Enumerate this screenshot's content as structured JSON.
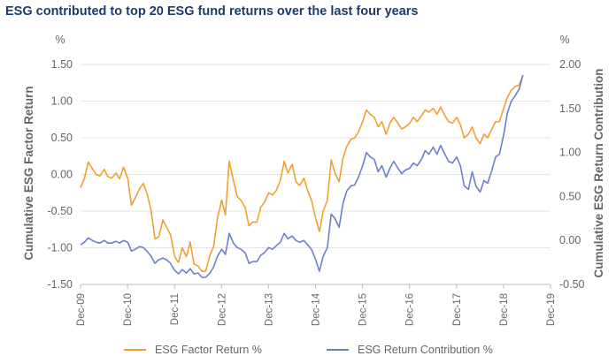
{
  "chart_data": {
    "type": "line",
    "title": "ESG contributed to top 20 ESG fund returns over the last four years",
    "y_left": {
      "label": "Cumulative ESG Factor Return",
      "unit": "%",
      "ticks": [
        "1.50",
        "1.00",
        "0.50",
        "0.00",
        "-0.50",
        "-1.00",
        "-1.50"
      ],
      "range": [
        -1.5,
        1.5
      ]
    },
    "y_right": {
      "label": "Cumulative ESG Return Contribution",
      "unit": "%",
      "ticks": [
        "2.00",
        "1.50",
        "1.00",
        "0.50",
        "0.00",
        "-0.50"
      ],
      "range": [
        -0.5,
        2.0
      ]
    },
    "x_ticks": [
      "Dec-09",
      "Dec-10",
      "Dec-11",
      "Dec-12",
      "Dec-13",
      "Dec-14",
      "Dec-15",
      "Dec-16",
      "Dec-17",
      "Dec-18",
      "Dec-19"
    ],
    "x_range": [
      2009.917,
      2019.917
    ],
    "grid": true,
    "legend_position": "bottom",
    "series": [
      {
        "name": "ESG Factor Return %",
        "color": "#f0a030",
        "axis": "left",
        "points": [
          [
            2009.92,
            -0.18
          ],
          [
            2010.0,
            -0.05
          ],
          [
            2010.08,
            0.17
          ],
          [
            2010.17,
            0.08
          ],
          [
            2010.25,
            0.0
          ],
          [
            2010.33,
            -0.02
          ],
          [
            2010.42,
            0.07
          ],
          [
            2010.5,
            -0.03
          ],
          [
            2010.58,
            -0.05
          ],
          [
            2010.67,
            0.02
          ],
          [
            2010.75,
            -0.06
          ],
          [
            2010.83,
            0.1
          ],
          [
            2010.92,
            -0.05
          ],
          [
            2011.0,
            -0.42
          ],
          [
            2011.08,
            -0.32
          ],
          [
            2011.17,
            -0.2
          ],
          [
            2011.25,
            -0.12
          ],
          [
            2011.33,
            -0.25
          ],
          [
            2011.42,
            -0.5
          ],
          [
            2011.5,
            -0.88
          ],
          [
            2011.58,
            -0.85
          ],
          [
            2011.67,
            -0.62
          ],
          [
            2011.75,
            -0.72
          ],
          [
            2011.83,
            -0.82
          ],
          [
            2011.92,
            -1.12
          ],
          [
            2012.0,
            -1.2
          ],
          [
            2012.08,
            -1.0
          ],
          [
            2012.17,
            -1.12
          ],
          [
            2012.25,
            -0.92
          ],
          [
            2012.33,
            -1.22
          ],
          [
            2012.42,
            -1.25
          ],
          [
            2012.5,
            -1.32
          ],
          [
            2012.58,
            -1.32
          ],
          [
            2012.67,
            -1.1
          ],
          [
            2012.75,
            -0.98
          ],
          [
            2012.83,
            -0.6
          ],
          [
            2012.92,
            -0.35
          ],
          [
            2013.0,
            -0.55
          ],
          [
            2013.08,
            0.18
          ],
          [
            2013.17,
            -0.08
          ],
          [
            2013.25,
            -0.3
          ],
          [
            2013.33,
            -0.35
          ],
          [
            2013.42,
            -0.45
          ],
          [
            2013.5,
            -0.7
          ],
          [
            2013.58,
            -0.65
          ],
          [
            2013.67,
            -0.65
          ],
          [
            2013.75,
            -0.45
          ],
          [
            2013.83,
            -0.38
          ],
          [
            2013.92,
            -0.25
          ],
          [
            2014.0,
            -0.28
          ],
          [
            2014.08,
            -0.22
          ],
          [
            2014.17,
            -0.08
          ],
          [
            2014.25,
            0.18
          ],
          [
            2014.33,
            0.02
          ],
          [
            2014.42,
            0.14
          ],
          [
            2014.5,
            -0.1
          ],
          [
            2014.58,
            -0.15
          ],
          [
            2014.67,
            -0.05
          ],
          [
            2014.75,
            -0.22
          ],
          [
            2014.83,
            -0.35
          ],
          [
            2014.92,
            -0.6
          ],
          [
            2015.0,
            -0.78
          ],
          [
            2015.08,
            -0.5
          ],
          [
            2015.17,
            -0.35
          ],
          [
            2015.25,
            0.2
          ],
          [
            2015.33,
            0.02
          ],
          [
            2015.42,
            -0.1
          ],
          [
            2015.5,
            0.22
          ],
          [
            2015.58,
            0.38
          ],
          [
            2015.67,
            0.48
          ],
          [
            2015.75,
            0.5
          ],
          [
            2015.83,
            0.58
          ],
          [
            2015.92,
            0.72
          ],
          [
            2016.0,
            0.88
          ],
          [
            2016.08,
            0.82
          ],
          [
            2016.17,
            0.78
          ],
          [
            2016.25,
            0.65
          ],
          [
            2016.33,
            0.72
          ],
          [
            2016.42,
            0.55
          ],
          [
            2016.5,
            0.7
          ],
          [
            2016.58,
            0.78
          ],
          [
            2016.67,
            0.7
          ],
          [
            2016.75,
            0.62
          ],
          [
            2016.83,
            0.65
          ],
          [
            2016.92,
            0.7
          ],
          [
            2017.0,
            0.78
          ],
          [
            2017.08,
            0.72
          ],
          [
            2017.17,
            0.8
          ],
          [
            2017.25,
            0.88
          ],
          [
            2017.33,
            0.85
          ],
          [
            2017.42,
            0.9
          ],
          [
            2017.5,
            0.82
          ],
          [
            2017.58,
            0.92
          ],
          [
            2017.67,
            0.8
          ],
          [
            2017.75,
            0.72
          ],
          [
            2017.83,
            0.7
          ],
          [
            2017.92,
            0.78
          ],
          [
            2018.0,
            0.68
          ],
          [
            2018.08,
            0.5
          ],
          [
            2018.17,
            0.55
          ],
          [
            2018.25,
            0.65
          ],
          [
            2018.33,
            0.5
          ],
          [
            2018.42,
            0.42
          ],
          [
            2018.5,
            0.55
          ],
          [
            2018.58,
            0.5
          ],
          [
            2018.67,
            0.62
          ],
          [
            2018.75,
            0.72
          ],
          [
            2018.83,
            0.72
          ],
          [
            2018.92,
            0.9
          ],
          [
            2019.0,
            1.05
          ],
          [
            2019.08,
            1.15
          ],
          [
            2019.17,
            1.2
          ],
          [
            2019.25,
            1.22
          ],
          [
            2019.33,
            1.35
          ]
        ]
      },
      {
        "name": "ESG Return Contribution %",
        "color": "#6a7fcf",
        "axis": "right",
        "points": [
          [
            2009.92,
            -0.05
          ],
          [
            2010.0,
            -0.02
          ],
          [
            2010.08,
            0.03
          ],
          [
            2010.17,
            0.0
          ],
          [
            2010.25,
            -0.02
          ],
          [
            2010.33,
            -0.03
          ],
          [
            2010.42,
            0.0
          ],
          [
            2010.5,
            -0.03
          ],
          [
            2010.58,
            -0.03
          ],
          [
            2010.67,
            -0.01
          ],
          [
            2010.75,
            -0.03
          ],
          [
            2010.83,
            0.0
          ],
          [
            2010.92,
            -0.02
          ],
          [
            2011.0,
            -0.12
          ],
          [
            2011.08,
            -0.1
          ],
          [
            2011.17,
            -0.07
          ],
          [
            2011.25,
            -0.08
          ],
          [
            2011.33,
            -0.12
          ],
          [
            2011.42,
            -0.18
          ],
          [
            2011.5,
            -0.26
          ],
          [
            2011.58,
            -0.22
          ],
          [
            2011.67,
            -0.2
          ],
          [
            2011.75,
            -0.22
          ],
          [
            2011.83,
            -0.26
          ],
          [
            2011.92,
            -0.34
          ],
          [
            2012.0,
            -0.38
          ],
          [
            2012.08,
            -0.33
          ],
          [
            2012.17,
            -0.37
          ],
          [
            2012.25,
            -0.32
          ],
          [
            2012.33,
            -0.38
          ],
          [
            2012.42,
            -0.37
          ],
          [
            2012.5,
            -0.42
          ],
          [
            2012.58,
            -0.42
          ],
          [
            2012.67,
            -0.37
          ],
          [
            2012.75,
            -0.3
          ],
          [
            2012.83,
            -0.18
          ],
          [
            2012.92,
            -0.1
          ],
          [
            2013.0,
            -0.16
          ],
          [
            2013.08,
            0.08
          ],
          [
            2013.17,
            -0.03
          ],
          [
            2013.25,
            -0.08
          ],
          [
            2013.33,
            -0.1
          ],
          [
            2013.42,
            -0.14
          ],
          [
            2013.5,
            -0.26
          ],
          [
            2013.58,
            -0.24
          ],
          [
            2013.67,
            -0.24
          ],
          [
            2013.75,
            -0.17
          ],
          [
            2013.83,
            -0.14
          ],
          [
            2013.92,
            -0.08
          ],
          [
            2014.0,
            -0.1
          ],
          [
            2014.08,
            -0.06
          ],
          [
            2014.17,
            -0.02
          ],
          [
            2014.25,
            0.08
          ],
          [
            2014.33,
            0.02
          ],
          [
            2014.42,
            0.05
          ],
          [
            2014.5,
            0.0
          ],
          [
            2014.58,
            -0.02
          ],
          [
            2014.67,
            0.0
          ],
          [
            2014.75,
            -0.05
          ],
          [
            2014.83,
            -0.1
          ],
          [
            2014.92,
            -0.22
          ],
          [
            2015.0,
            -0.35
          ],
          [
            2015.08,
            -0.18
          ],
          [
            2015.17,
            -0.08
          ],
          [
            2015.25,
            0.3
          ],
          [
            2015.33,
            0.25
          ],
          [
            2015.42,
            0.15
          ],
          [
            2015.5,
            0.42
          ],
          [
            2015.58,
            0.56
          ],
          [
            2015.67,
            0.62
          ],
          [
            2015.75,
            0.63
          ],
          [
            2015.83,
            0.72
          ],
          [
            2015.92,
            0.85
          ],
          [
            2016.0,
            1.0
          ],
          [
            2016.08,
            0.95
          ],
          [
            2016.17,
            0.92
          ],
          [
            2016.25,
            0.78
          ],
          [
            2016.33,
            0.85
          ],
          [
            2016.42,
            0.72
          ],
          [
            2016.5,
            0.82
          ],
          [
            2016.58,
            0.9
          ],
          [
            2016.67,
            0.82
          ],
          [
            2016.75,
            0.76
          ],
          [
            2016.83,
            0.8
          ],
          [
            2016.92,
            0.82
          ],
          [
            2017.0,
            0.88
          ],
          [
            2017.08,
            0.85
          ],
          [
            2017.17,
            0.92
          ],
          [
            2017.25,
            1.02
          ],
          [
            2017.33,
            0.98
          ],
          [
            2017.42,
            1.06
          ],
          [
            2017.5,
            0.98
          ],
          [
            2017.58,
            1.08
          ],
          [
            2017.67,
            0.98
          ],
          [
            2017.75,
            0.9
          ],
          [
            2017.83,
            0.88
          ],
          [
            2017.92,
            0.95
          ],
          [
            2018.0,
            0.85
          ],
          [
            2018.08,
            0.62
          ],
          [
            2018.17,
            0.58
          ],
          [
            2018.25,
            0.78
          ],
          [
            2018.33,
            0.62
          ],
          [
            2018.42,
            0.55
          ],
          [
            2018.5,
            0.68
          ],
          [
            2018.58,
            0.65
          ],
          [
            2018.67,
            0.8
          ],
          [
            2018.75,
            0.95
          ],
          [
            2018.83,
            0.98
          ],
          [
            2018.92,
            1.2
          ],
          [
            2019.0,
            1.45
          ],
          [
            2019.08,
            1.58
          ],
          [
            2019.17,
            1.65
          ],
          [
            2019.25,
            1.72
          ],
          [
            2019.33,
            1.88
          ]
        ]
      }
    ]
  }
}
